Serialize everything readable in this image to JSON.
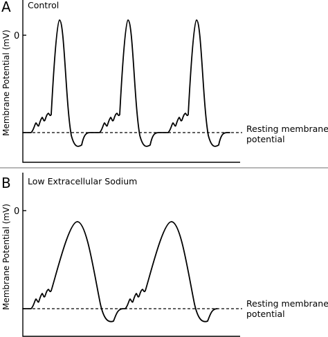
{
  "panels": [
    {
      "letter": "A",
      "title": "Control",
      "ylabel": "Membrane Potential (mV)",
      "zero_tick_label": "0",
      "resting_label_line1": "Resting membrane",
      "resting_label_line2": "potential"
    },
    {
      "letter": "B",
      "title": "Low Extracellular Sodium",
      "ylabel": "Membrane Potential (mV)",
      "zero_tick_label": "0",
      "resting_label_line1": "Resting membrane",
      "resting_label_line2": "potential"
    }
  ]
}
